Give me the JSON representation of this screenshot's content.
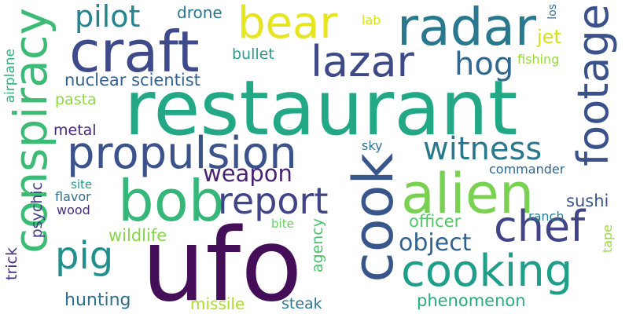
{
  "words": [
    {
      "text": "ufo",
      "color": "#440e58"
    },
    {
      "text": "restaurant",
      "color": "#22a884"
    },
    {
      "text": "cook",
      "color": "#39568c"
    },
    {
      "text": "alien",
      "color": "#7ad151"
    },
    {
      "text": "cooking",
      "color": "#1f9e89"
    },
    {
      "text": "craft",
      "color": "#3e4a89"
    },
    {
      "text": "conspiracy",
      "color": "#3bbb75"
    },
    {
      "text": "radar",
      "color": "#2a788e"
    },
    {
      "text": "bob",
      "color": "#35b779"
    },
    {
      "text": "propulsion",
      "color": "#3b528b"
    },
    {
      "text": "footage",
      "color": "#3b518b"
    },
    {
      "text": "bear",
      "color": "#e6e51f"
    },
    {
      "text": "lazar",
      "color": "#3e4989"
    },
    {
      "text": "chef",
      "color": "#414487"
    },
    {
      "text": "pig",
      "color": "#21908d"
    },
    {
      "text": "report",
      "color": "#414487"
    },
    {
      "text": "witness",
      "color": "#2a788e"
    },
    {
      "text": "hog",
      "color": "#31688e"
    },
    {
      "text": "pilot",
      "color": "#25858e"
    },
    {
      "text": "weapon",
      "color": "#482374"
    },
    {
      "text": "object",
      "color": "#33638d"
    },
    {
      "text": "jet",
      "color": "#d2e21b"
    },
    {
      "text": "drone",
      "color": "#2a768e"
    },
    {
      "text": "nuclear scientist",
      "color": "#34618d"
    },
    {
      "text": "bullet",
      "color": "#2a9d8f"
    },
    {
      "text": "hunting",
      "color": "#2e6e8e"
    },
    {
      "text": "phenomenon",
      "color": "#26ad81"
    },
    {
      "text": "officer",
      "color": "#56c667"
    },
    {
      "text": "sushi",
      "color": "#3a548c"
    },
    {
      "text": "steak",
      "color": "#2a768e"
    },
    {
      "text": "missile",
      "color": "#addc30"
    },
    {
      "text": "agency",
      "color": "#4ac16d"
    },
    {
      "text": "wildlife",
      "color": "#86d549"
    },
    {
      "text": "psychic",
      "color": "#433e85"
    },
    {
      "text": "trick",
      "color": "#46327e"
    },
    {
      "text": "metal",
      "color": "#482878"
    },
    {
      "text": "pasta",
      "color": "#8fd744"
    },
    {
      "text": "airplane",
      "color": "#2db27d"
    },
    {
      "text": "commander",
      "color": "#31668e"
    },
    {
      "text": "ranch",
      "color": "#26828e"
    },
    {
      "text": "fishing",
      "color": "#9bd93c"
    },
    {
      "text": "lab",
      "color": "#d8e219"
    },
    {
      "text": "los",
      "color": "#31688e"
    },
    {
      "text": "tape",
      "color": "#9dd93b"
    },
    {
      "text": "sky",
      "color": "#2c728e"
    },
    {
      "text": "site",
      "color": "#1e9c89"
    },
    {
      "text": "flavor",
      "color": "#2e6f8e"
    },
    {
      "text": "wood",
      "color": "#472d7b"
    },
    {
      "text": "bite",
      "color": "#67cc5c"
    }
  ]
}
